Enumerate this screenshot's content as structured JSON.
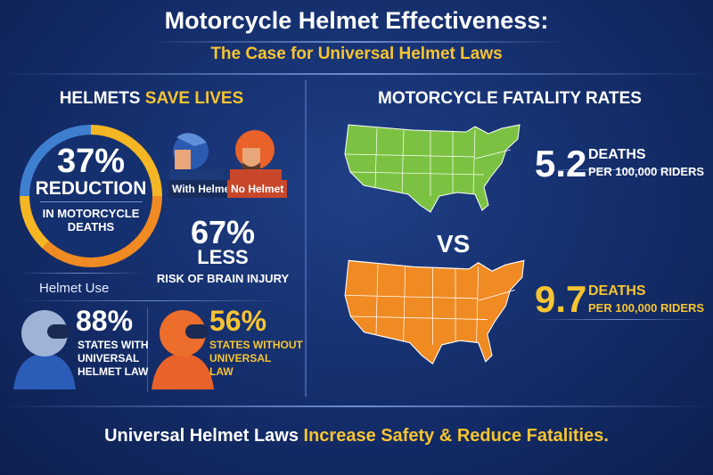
{
  "header": {
    "title": "Motorcycle Helmet Effectiveness:",
    "subtitle": "The Case for Universal Helmet Laws"
  },
  "left": {
    "heading_white": "HELMETS",
    "heading_yellow": "SAVE LIVES",
    "ring": {
      "value": "37%",
      "label": "REDUCTION",
      "desc_line1": "IN MOTORCYCLE",
      "desc_line2": "DEATHS"
    },
    "with_helmet_label": "With Helmet",
    "no_helmet_label": "No Helmet",
    "brain": {
      "value": "67%",
      "label": "LESS",
      "desc": "RISK OF BRAIN INJURY"
    },
    "helmet_use_label": "Helmet Use",
    "with_law": {
      "value": "88%",
      "line1": "STATES WITH",
      "line2": "UNIVERSAL",
      "line3": "HELMET LAW"
    },
    "without_law": {
      "value": "56%",
      "line1": "STATES WITHOUT",
      "line2": "UNIVERSAL",
      "line3": "LAW"
    }
  },
  "right": {
    "heading": "MOTORCYCLE FATALITY RATES",
    "rate1": {
      "value": "5.2",
      "unit": "DEATHS",
      "per": "PER 100,000 RIDERS",
      "color": "#7cc242"
    },
    "vs": "VS",
    "rate2": {
      "value": "9.7",
      "unit": "DEATHS",
      "per": "PER 100,000 RIDERS",
      "color": "#f08a22"
    }
  },
  "footer": {
    "white": "Universal Helmet Laws",
    "yellow": "Increase Safety & Reduce Fatalities."
  }
}
